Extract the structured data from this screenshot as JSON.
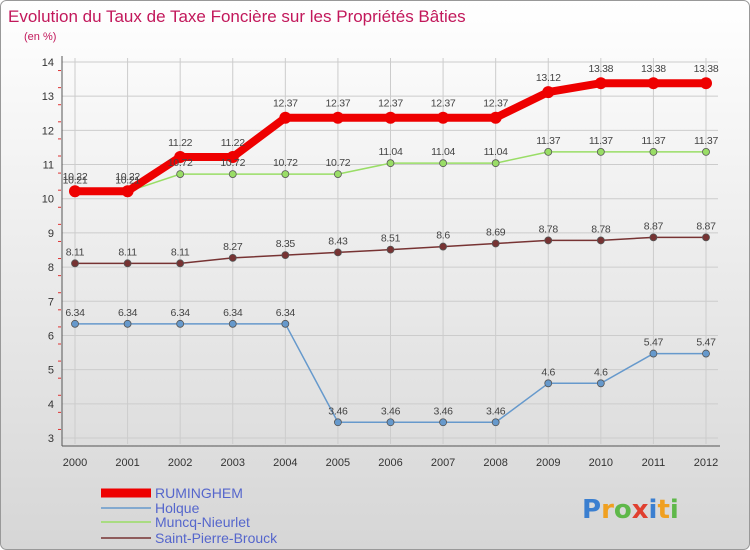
{
  "title": "Evolution du Taux de Taxe Foncière sur les Propriétés Bâties",
  "subtitle": "(en %)",
  "brand": {
    "letters": [
      "P",
      "r",
      "o",
      "x",
      "i",
      "t",
      "i"
    ],
    "colors": [
      "#3b7fd0",
      "#f0a020",
      "#5fb84a",
      "#e04030",
      "#3b7fd0",
      "#f0a020",
      "#5fb84a"
    ]
  },
  "colors": {
    "background_top": "#ffffff",
    "background_bottom": "#d6d6d6",
    "title": "#c2185b",
    "grid": "#cccccc",
    "axis": "#555555",
    "text": "#333333"
  },
  "chart_data": {
    "type": "line",
    "title": "Evolution du Taux de Taxe Foncière sur les Propriétés Bâties",
    "subtitle": "(en %)",
    "xlabel": "",
    "ylabel": "",
    "ylim": [
      3,
      14
    ],
    "yticks": [
      3,
      4,
      5,
      6,
      7,
      8,
      9,
      10,
      11,
      12,
      13,
      14
    ],
    "grid": true,
    "legend_position": "bottom-left",
    "categories": [
      "2000",
      "2001",
      "2002",
      "2003",
      "2004",
      "2005",
      "2006",
      "2007",
      "2008",
      "2009",
      "2010",
      "2011",
      "2012"
    ],
    "series": [
      {
        "name": "RUMINGHEM",
        "color": "#ee0000",
        "values": [
          10.22,
          10.22,
          11.22,
          11.22,
          12.37,
          12.37,
          12.37,
          12.37,
          12.37,
          13.12,
          13.38,
          13.38,
          13.38
        ],
        "labels": [
          "10.22",
          "10.22",
          "11.22",
          "11.22",
          "12.37",
          "12.37",
          "12.37",
          "12.37",
          "12.37",
          "13.12",
          "13.38",
          "13.38",
          "13.38"
        ]
      },
      {
        "name": "Holque",
        "color": "#6699cc",
        "values": [
          6.34,
          6.34,
          6.34,
          6.34,
          6.34,
          3.46,
          3.46,
          3.46,
          3.46,
          4.6,
          4.6,
          5.47,
          5.47
        ],
        "labels": [
          "6.34",
          "6.34",
          "6.34",
          "6.34",
          "6.34",
          "3.46",
          "3.46",
          "3.46",
          "3.46",
          "4.6",
          "4.6",
          "5.47",
          "5.47"
        ]
      },
      {
        "name": "Muncq-Nieurlet",
        "color": "#99dd66",
        "values": [
          10.21,
          10.21,
          10.72,
          10.72,
          10.72,
          10.72,
          11.04,
          11.04,
          11.04,
          11.37,
          11.37,
          11.37,
          11.37
        ],
        "labels": [
          "10.21",
          "10.21",
          "10.72",
          "10.72",
          "10.72",
          "10.72",
          "11.04",
          "11.04",
          "11.04",
          "11.37",
          "11.37",
          "11.37",
          "11.37"
        ]
      },
      {
        "name": "Saint-Pierre-Brouck",
        "color": "#773333",
        "values": [
          8.11,
          8.11,
          8.11,
          8.27,
          8.35,
          8.43,
          8.51,
          8.6,
          8.69,
          8.78,
          8.78,
          8.87,
          8.87
        ],
        "labels": [
          "8.11",
          "8.11",
          "8.11",
          "8.27",
          "8.35",
          "8.43",
          "8.51",
          "8.6",
          "8.69",
          "8.78",
          "8.78",
          "8.87",
          "8.87"
        ]
      }
    ]
  }
}
